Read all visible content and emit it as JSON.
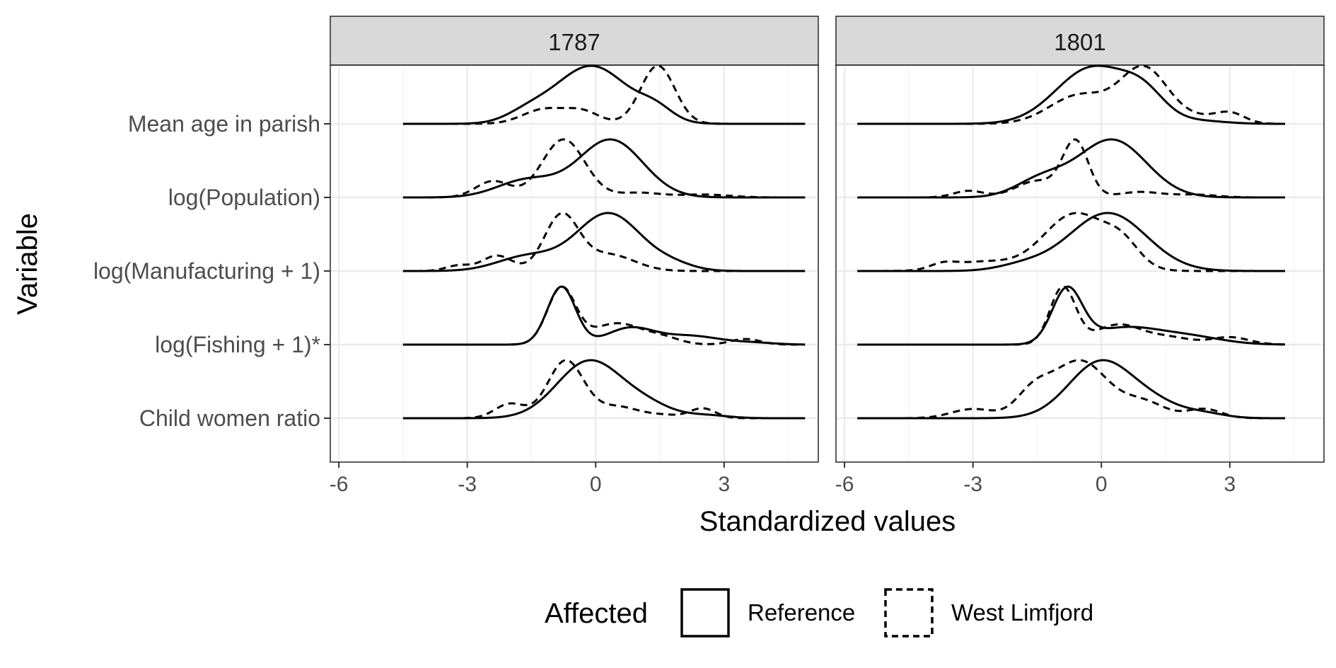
{
  "chart_data": {
    "type": "ridgeline-density",
    "xlabel": "Standardized values",
    "ylabel": "Variable",
    "xlim": [
      -6.2,
      5.2
    ],
    "xticks": [
      -6,
      -3,
      0,
      3
    ],
    "xtick_labels": [
      "-6",
      "-3",
      "0",
      "3"
    ],
    "density_range": [
      -4.5,
      4.9
    ],
    "categories": [
      "Mean age in parish",
      "log(Population)",
      "log(Manufacturing + 1)",
      "log(Fishing + 1)*",
      "Child women ratio"
    ],
    "legend": {
      "title": "Affected",
      "entries": [
        {
          "label": "Reference",
          "linetype": "solid"
        },
        {
          "label": "West Limfjord",
          "linetype": "dashed"
        }
      ]
    },
    "panels": [
      {
        "title": "1787",
        "ridges": [
          {
            "category": "Mean age in parish",
            "reference": {
              "range": [
                -4.5,
                4.9
              ],
              "bumps": [
                [
                  1,
                  -0.1,
                  0.85
                ],
                [
                  0.2,
                  1.4,
                  0.4
                ],
                [
                  0.15,
                  -1.6,
                  0.5
                ]
              ]
            },
            "west_limfjord": {
              "range": [
                -4.5,
                4.9
              ],
              "bumps": [
                [
                  1,
                  1.45,
                  0.4
                ],
                [
                  0.25,
                  -1.2,
                  0.5
                ],
                [
                  0.2,
                  -0.3,
                  0.4
                ]
              ]
            }
          },
          {
            "category": "log(Population)",
            "reference": {
              "range": [
                -4.5,
                4.9
              ],
              "bumps": [
                [
                  1,
                  0.35,
                  0.75
                ],
                [
                  0.3,
                  -1.6,
                  0.7
                ]
              ]
            },
            "west_limfjord": {
              "range": [
                -4.5,
                4.9
              ],
              "bumps": [
                [
                  1,
                  -0.75,
                  0.5
                ],
                [
                  0.28,
                  -2.4,
                  0.4
                ],
                [
                  0.08,
                  1,
                  0.5
                ],
                [
                  0.05,
                  2.5,
                  0.6
                ]
              ]
            }
          },
          {
            "category": "log(Manufacturing + 1)",
            "reference": {
              "range": [
                -4.5,
                4.9
              ],
              "bumps": [
                [
                  1,
                  0.3,
                  0.75
                ],
                [
                  0.25,
                  -1.6,
                  0.7
                ],
                [
                  0.1,
                  1.8,
                  0.5
                ]
              ]
            },
            "west_limfjord": {
              "range": [
                -4.5,
                4.9
              ],
              "bumps": [
                [
                  1,
                  -0.8,
                  0.4
                ],
                [
                  0.28,
                  -2.3,
                  0.35
                ],
                [
                  0.3,
                  0.3,
                  0.6
                ],
                [
                  0.1,
                  -3.2,
                  0.3
                ]
              ]
            }
          },
          {
            "category": "log(Fishing + 1)*",
            "reference": {
              "range": [
                -4.5,
                4.9
              ],
              "bumps": [
                [
                  1,
                  -0.8,
                  0.33
                ],
                [
                  0.28,
                  0.8,
                  0.55
                ],
                [
                  0.15,
                  2.2,
                  0.7
                ],
                [
                  0.03,
                  3.7,
                  0.5
                ]
              ]
            },
            "west_limfjord": {
              "range": [
                -4.5,
                4.9
              ],
              "bumps": [
                [
                  1,
                  -0.8,
                  0.33
                ],
                [
                  0.38,
                  0.5,
                  0.6
                ],
                [
                  0.1,
                  1.6,
                  0.4
                ],
                [
                  0.1,
                  3.5,
                  0.35
                ]
              ]
            }
          },
          {
            "category": "Child women ratio",
            "reference": {
              "range": [
                -4.5,
                4.9
              ],
              "bumps": [
                [
                  1,
                  -0.15,
                  0.75
                ],
                [
                  0.2,
                  1.2,
                  0.6
                ],
                [
                  0.05,
                  2.6,
                  0.5
                ]
              ]
            },
            "west_limfjord": {
              "range": [
                -4.5,
                4.9
              ],
              "bumps": [
                [
                  1,
                  -0.7,
                  0.42
                ],
                [
                  0.25,
                  -2,
                  0.35
                ],
                [
                  0.2,
                  0.5,
                  0.5
                ],
                [
                  0.17,
                  2.5,
                  0.3
                ],
                [
                  0.05,
                  1.6,
                  0.4
                ]
              ]
            }
          }
        ]
      },
      {
        "title": "1801",
        "ridges": [
          {
            "category": "Mean age in parish",
            "reference": {
              "range": [
                -5.7,
                4.3
              ],
              "bumps": [
                [
                  1,
                  -0.2,
                  0.85
                ],
                [
                  0.4,
                  1,
                  0.5
                ],
                [
                  0.05,
                  2.3,
                  0.6
                ]
              ]
            },
            "west_limfjord": {
              "range": [
                -5.7,
                4.3
              ],
              "bumps": [
                [
                  0.95,
                  1,
                  0.55
                ],
                [
                  0.5,
                  -0.5,
                  0.7
                ],
                [
                  0.18,
                  3,
                  0.35
                ],
                [
                  0.1,
                  2.2,
                  0.5
                ]
              ]
            }
          },
          {
            "category": "log(Population)",
            "reference": {
              "range": [
                -5.7,
                4.3
              ],
              "bumps": [
                [
                  1,
                  0.25,
                  0.8
                ],
                [
                  0.3,
                  -1.4,
                  0.6
                ]
              ]
            },
            "west_limfjord": {
              "range": [
                -5.7,
                4.3
              ],
              "bumps": [
                [
                  1,
                  -0.6,
                  0.3
                ],
                [
                  0.3,
                  -1.5,
                  0.5
                ],
                [
                  0.12,
                  -3.1,
                  0.35
                ],
                [
                  0.1,
                  0.9,
                  0.5
                ],
                [
                  0.05,
                  2.2,
                  0.5
                ]
              ]
            }
          },
          {
            "category": "log(Manufacturing + 1)",
            "reference": {
              "range": [
                -5.7,
                4.3
              ],
              "bumps": [
                [
                  1,
                  0.15,
                  0.9
                ],
                [
                  0.1,
                  -1.8,
                  0.6
                ]
              ]
            },
            "west_limfjord": {
              "range": [
                -5.7,
                4.3
              ],
              "bumps": [
                [
                  0.9,
                  -0.6,
                  0.75
                ],
                [
                  0.3,
                  0.5,
                  0.4
                ],
                [
                  0.14,
                  -2.8,
                  0.7
                ],
                [
                  0.08,
                  -3.7,
                  0.3
                ]
              ]
            }
          },
          {
            "category": "log(Fishing + 1)*",
            "reference": {
              "range": [
                -5.7,
                4.3
              ],
              "bumps": [
                [
                  1,
                  -0.8,
                  0.35
                ],
                [
                  0.3,
                  0.5,
                  0.8
                ],
                [
                  0.15,
                  2,
                  0.8
                ]
              ]
            },
            "west_limfjord": {
              "range": [
                -5.7,
                4.3
              ],
              "bumps": [
                [
                  1,
                  -0.9,
                  0.3
                ],
                [
                  0.35,
                  0.4,
                  0.55
                ],
                [
                  0.12,
                  1.6,
                  0.5
                ],
                [
                  0.13,
                  3,
                  0.45
                ]
              ]
            }
          },
          {
            "category": "Child women ratio",
            "reference": {
              "range": [
                -5.7,
                4.3
              ],
              "bumps": [
                [
                  1,
                  0,
                  0.75
                ],
                [
                  0.2,
                  1.3,
                  0.6
                ],
                [
                  0.08,
                  2.4,
                  0.5
                ]
              ]
            },
            "west_limfjord": {
              "range": [
                -5.7,
                4.3
              ],
              "bumps": [
                [
                  0.75,
                  -0.5,
                  0.65
                ],
                [
                  0.3,
                  -1.6,
                  0.4
                ],
                [
                  0.12,
                  -3,
                  0.5
                ],
                [
                  0.2,
                  1,
                  0.5
                ],
                [
                  0.12,
                  2.4,
                  0.4
                ]
              ]
            }
          }
        ]
      }
    ]
  }
}
